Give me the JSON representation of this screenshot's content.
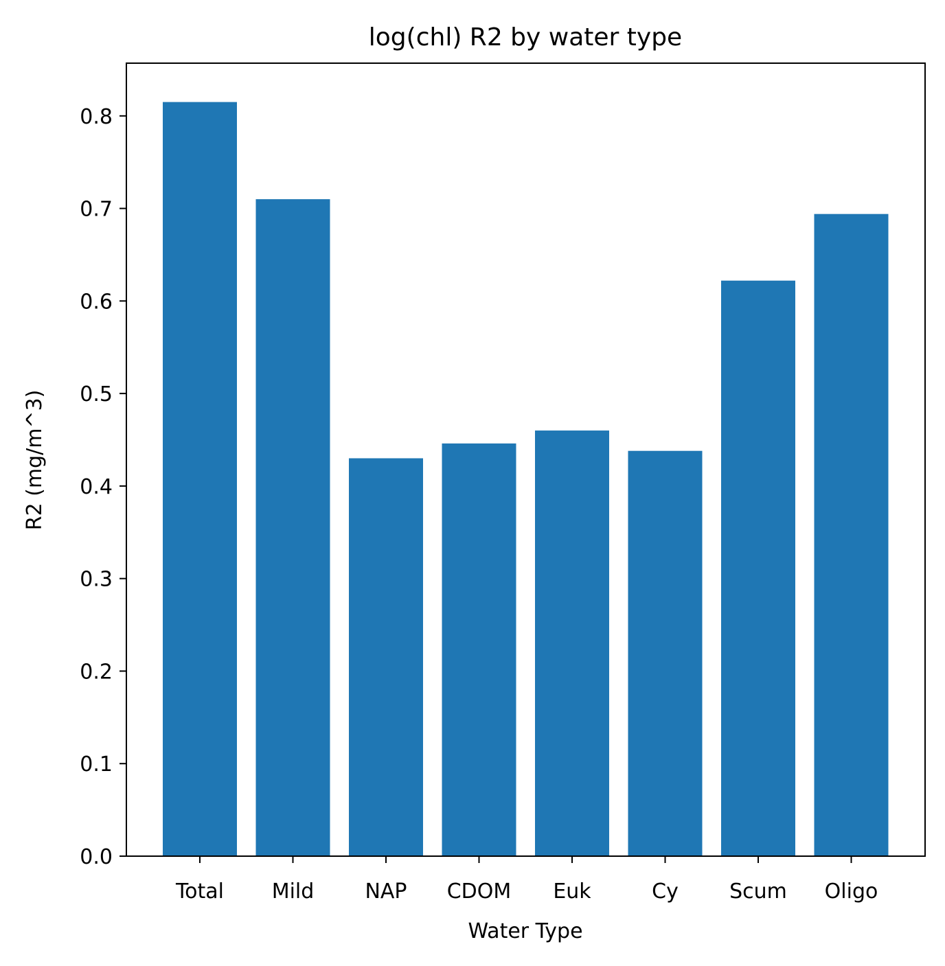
{
  "chart_data": {
    "type": "bar",
    "title": "log(chl) R2 by water type",
    "xlabel": "Water Type",
    "ylabel": "R2 (mg/m^3)",
    "categories": [
      "Total",
      "Mild",
      "NAP",
      "CDOM",
      "Euk",
      "Cy",
      "Scum",
      "Oligo"
    ],
    "values": [
      0.815,
      0.71,
      0.43,
      0.446,
      0.46,
      0.438,
      0.622,
      0.694
    ],
    "ylim": [
      0,
      0.857
    ],
    "yticks": [
      "0.0",
      "0.1",
      "0.2",
      "0.3",
      "0.4",
      "0.5",
      "0.6",
      "0.7",
      "0.8"
    ],
    "bar_color": "#1f77b4",
    "grid": false,
    "legend": "none"
  }
}
